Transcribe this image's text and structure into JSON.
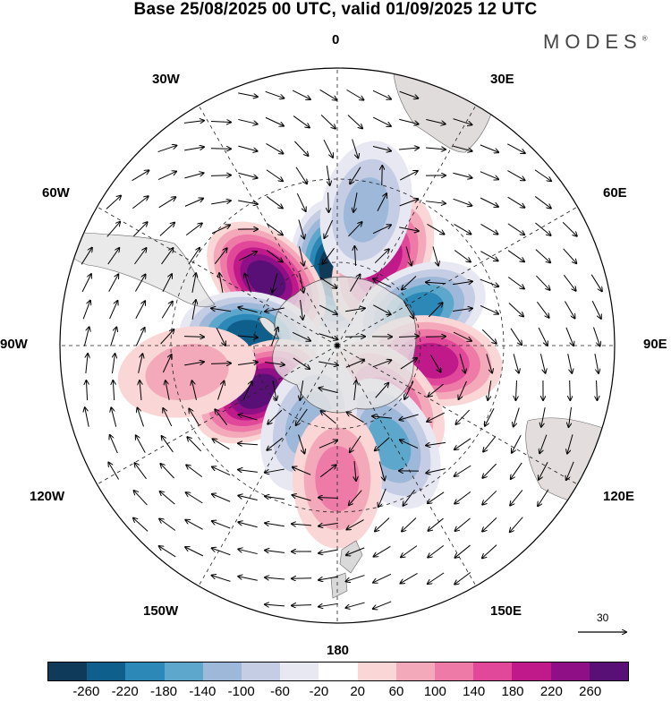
{
  "title": "Base 25/08/2025 00 UTC, valid 01/09/2025 12 UTC",
  "brand": "MODES",
  "brand_mark": "®",
  "longitude_labels": {
    "lon_0": "0",
    "lon_30e": "30E",
    "lon_60e": "60E",
    "lon_90e": "90E",
    "lon_120e": "120E",
    "lon_150e": "150E",
    "lon_180": "180",
    "lon_150w": "150W",
    "lon_120w": "120W",
    "lon_90w": "90W",
    "lon_60w": "60W",
    "lon_30w": "30W"
  },
  "wind_reference": {
    "value": "30"
  },
  "colorbar": {
    "colors": [
      "#0f3b58",
      "#0e5f8c",
      "#2b88b7",
      "#5ea7cc",
      "#9db8d8",
      "#c5cde4",
      "#e8e8f2",
      "#ffffff",
      "#fad6d6",
      "#f4a9bb",
      "#ee7aa8",
      "#e1489a",
      "#c01a8a",
      "#8e0f86",
      "#591076"
    ],
    "ticks": [
      "-260",
      "-220",
      "-180",
      "-140",
      "-100",
      "-60",
      "-20",
      "20",
      "60",
      "100",
      "140",
      "180",
      "220",
      "260"
    ]
  },
  "anomaly_centers": [
    {
      "lon": -2,
      "lat": -62,
      "value": -230,
      "name": "low-south-atlantic"
    },
    {
      "lon": -47,
      "lat": -55,
      "value": 260,
      "name": "high-south-america-east"
    },
    {
      "lon": 28,
      "lat": -55,
      "value": 170,
      "name": "high-southern-africa"
    },
    {
      "lon": -84,
      "lat": -58,
      "value": -190,
      "name": "low-drake-west"
    },
    {
      "lon": 67,
      "lat": -58,
      "value": -140,
      "name": "low-south-indian-west"
    },
    {
      "lon": 99,
      "lat": -55,
      "value": 150,
      "name": "high-south-indian-east"
    },
    {
      "lon": -120,
      "lat": -57,
      "value": 220,
      "name": "high-south-pacific-east"
    },
    {
      "lon": 138,
      "lat": -63,
      "value": 130,
      "name": "high-antarctic-pacific"
    },
    {
      "lon": 152,
      "lat": -50,
      "value": -100,
      "name": "low-tasman"
    },
    {
      "lon": -160,
      "lat": -60,
      "value": -80,
      "name": "low-ross"
    },
    {
      "lon": 180,
      "lat": -42,
      "value": 60,
      "name": "high-new-zealand-north"
    },
    {
      "lon": -100,
      "lat": -35,
      "value": 40,
      "name": "high-east-pacific"
    },
    {
      "lon": 12,
      "lat": -40,
      "value": -60,
      "name": "low-southwest-africa"
    }
  ]
}
